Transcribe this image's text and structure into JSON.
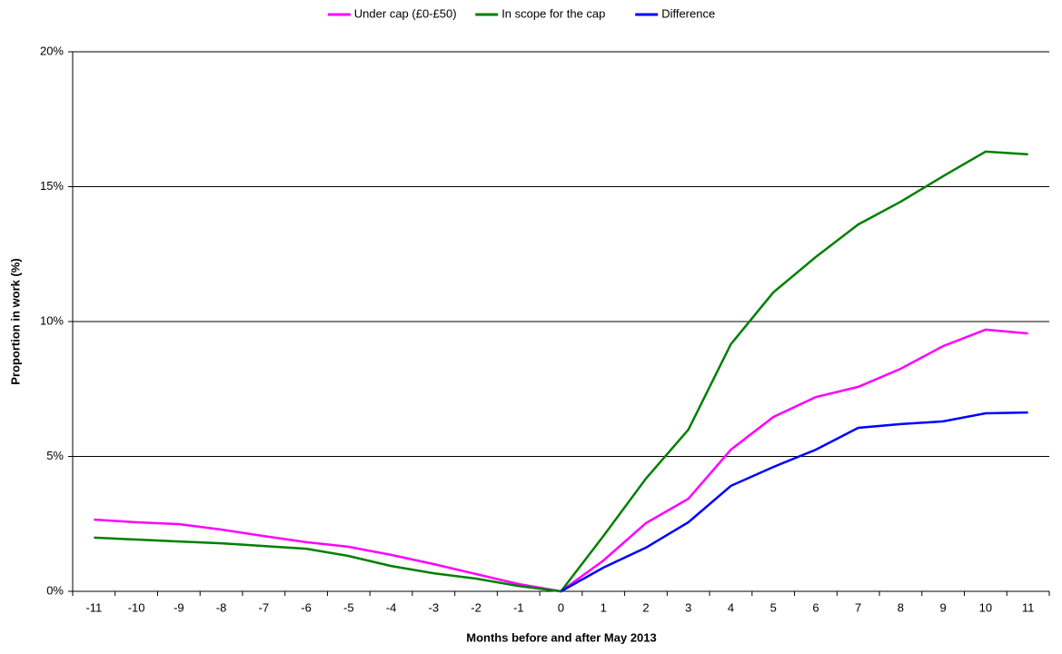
{
  "chart_data": {
    "type": "line",
    "xlabel": "Months before and after May 2013",
    "ylabel": "Proportion in work (%)",
    "categories": [
      "-11",
      "-10",
      "-9",
      "-8",
      "-7",
      "-6",
      "-5",
      "-4",
      "-3",
      "-2",
      "-1",
      "0",
      "1",
      "2",
      "3",
      "4",
      "5",
      "6",
      "7",
      "8",
      "9",
      "10",
      "11"
    ],
    "series": [
      {
        "name": "Under cap (£0-£50)",
        "color": "#ff00ff",
        "values": [
          2.66,
          2.56,
          2.49,
          2.29,
          2.05,
          1.82,
          1.65,
          1.35,
          1.01,
          0.64,
          0.27,
          0,
          1.14,
          2.53,
          3.43,
          5.25,
          6.46,
          7.2,
          7.58,
          8.25,
          9.09,
          9.7,
          9.56
        ]
      },
      {
        "name": "In scope for the cap",
        "color": "#008000",
        "values": [
          1.99,
          1.92,
          1.85,
          1.78,
          1.68,
          1.58,
          1.31,
          0.94,
          0.67,
          0.47,
          0.2,
          0,
          2.05,
          4.18,
          5.99,
          9.16,
          11.08,
          12.39,
          13.6,
          14.44,
          15.39,
          16.3,
          16.2
        ]
      },
      {
        "name": "Difference",
        "color": "#0000ff",
        "values": [
          null,
          null,
          null,
          null,
          null,
          null,
          null,
          null,
          null,
          null,
          null,
          0,
          0.88,
          1.62,
          2.56,
          3.91,
          4.61,
          5.25,
          6.06,
          6.2,
          6.3,
          6.6,
          6.63
        ]
      }
    ],
    "ylim": [
      0,
      20
    ],
    "yticks": [
      {
        "value": 0,
        "label": "0%"
      },
      {
        "value": 5,
        "label": "5%"
      },
      {
        "value": 10,
        "label": "10%"
      },
      {
        "value": 15,
        "label": "15%"
      },
      {
        "value": 20,
        "label": "20%"
      }
    ],
    "grid": true,
    "legend": "top"
  }
}
